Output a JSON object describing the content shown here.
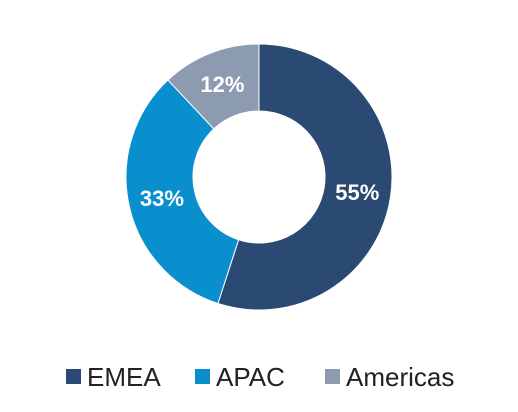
{
  "chart_data": {
    "type": "pie",
    "variant": "donut",
    "categories": [
      "EMEA",
      "APAC",
      "Americas"
    ],
    "values": [
      55,
      33,
      12
    ],
    "value_labels": [
      "55%",
      "33%",
      "12%"
    ],
    "colors": [
      "#2b4a73",
      "#0a8fce",
      "#8d9bb0"
    ],
    "legend_position": "bottom"
  }
}
